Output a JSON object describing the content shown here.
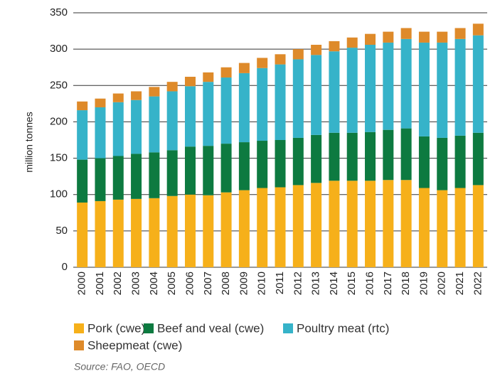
{
  "chart_data": {
    "type": "stacked_bar",
    "y_label": "million tonnes",
    "source": "Source: FAO, OECD",
    "categories": [
      "2000",
      "2001",
      "2002",
      "2003",
      "2004",
      "2005",
      "2006",
      "2007",
      "2008",
      "2009",
      "2010",
      "2011",
      "2012",
      "2013",
      "2014",
      "2015",
      "2016",
      "2017",
      "2018",
      "2019",
      "2020",
      "2021",
      "2022"
    ],
    "series": [
      {
        "name": "Pork (cwe)",
        "color": "#f6b01a",
        "values": [
          89,
          91,
          93,
          94,
          95,
          98,
          100,
          99,
          103,
          106,
          109,
          110,
          113,
          116,
          119,
          119,
          119,
          120,
          120,
          109,
          106,
          109,
          113
        ]
      },
      {
        "name": "Beef and veal (cwe)",
        "color": "#0d7a40",
        "values": [
          59,
          59,
          60,
          62,
          63,
          63,
          66,
          68,
          67,
          66,
          65,
          65,
          65,
          66,
          66,
          66,
          67,
          69,
          71,
          71,
          72,
          72,
          72
        ]
      },
      {
        "name": "Poultry meat (rtc)",
        "color": "#36b3c9",
        "values": [
          68,
          70,
          74,
          74,
          77,
          81,
          83,
          88,
          91,
          95,
          100,
          104,
          108,
          110,
          112,
          117,
          120,
          120,
          123,
          129,
          131,
          133,
          134
        ]
      },
      {
        "name": "Sheepmeat (cwe)",
        "color": "#de8a2a",
        "values": [
          12,
          12,
          12,
          12,
          13,
          13,
          13,
          13,
          14,
          14,
          14,
          14,
          14,
          14,
          14,
          14,
          15,
          15,
          15,
          15,
          15,
          15,
          16
        ]
      }
    ],
    "ylim": [
      0,
      350
    ],
    "yticks": [
      0,
      50,
      100,
      150,
      200,
      250,
      300,
      350
    ],
    "grid": true
  }
}
